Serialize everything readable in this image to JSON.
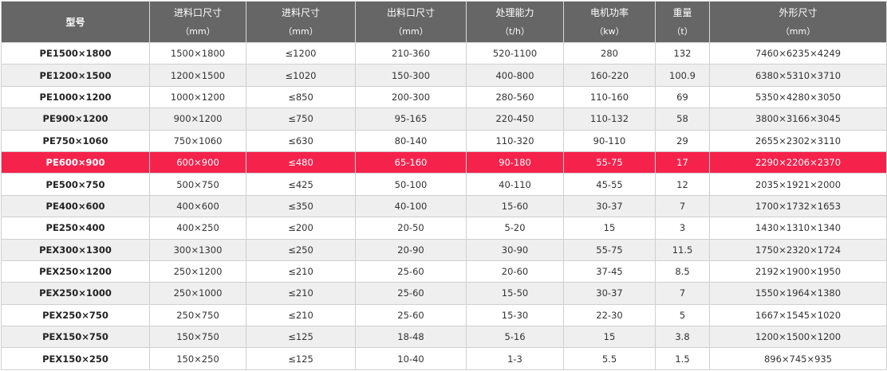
{
  "colors": {
    "header_bg": "#666666",
    "highlight_bg": "#f5234c",
    "alt_row_bg": "#efefef"
  },
  "headers": [
    {
      "title": "型号",
      "unit": ""
    },
    {
      "title": "进料口尺寸",
      "unit": "（mm）"
    },
    {
      "title": "进料尺寸",
      "unit": "（mm）"
    },
    {
      "title": "出料口尺寸",
      "unit": "（mm）"
    },
    {
      "title": "处理能力",
      "unit": "（t/h）"
    },
    {
      "title": "电机功率",
      "unit": "（kw）"
    },
    {
      "title": "重量",
      "unit": "（t）"
    },
    {
      "title": "外形尺寸",
      "unit": "（mm）"
    }
  ],
  "highlighted_row": "PE600×900",
  "rows": [
    [
      "PE1500×1800",
      "1500×1800",
      "≤1200",
      "210-360",
      "520-1100",
      "280",
      "132",
      "7460×6235×4249"
    ],
    [
      "PE1200×1500",
      "1200×1500",
      "≤1020",
      "150-300",
      "400-800",
      "160-220",
      "100.9",
      "6380×5310×3710"
    ],
    [
      "PE1000×1200",
      "1000×1200",
      "≤850",
      "200-300",
      "280-560",
      "110-160",
      "69",
      "5350×4280×3050"
    ],
    [
      "PE900×1200",
      "900×1200",
      "≤750",
      "95-165",
      "220-450",
      "110-132",
      "58",
      "3800×3166×3045"
    ],
    [
      "PE750×1060",
      "750×1060",
      "≤630",
      "80-140",
      "110-320",
      "90-110",
      "29",
      "2655×2302×3110"
    ],
    [
      "PE600×900",
      "600×900",
      "≤480",
      "65-160",
      "90-180",
      "55-75",
      "17",
      "2290×2206×2370"
    ],
    [
      "PE500×750",
      "500×750",
      "≤425",
      "50-100",
      "40-110",
      "45-55",
      "12",
      "2035×1921×2000"
    ],
    [
      "PE400×600",
      "400×600",
      "≤350",
      "40-100",
      "15-60",
      "30-37",
      "7",
      "1700×1732×1653"
    ],
    [
      "PE250×400",
      "400×250",
      "≤200",
      "20-50",
      "5-20",
      "15",
      "3",
      "1430×1310×1340"
    ],
    [
      "PEX300×1300",
      "300×1300",
      "≤250",
      "20-90",
      "30-90",
      "55-75",
      "11.5",
      "1750×2320×1724"
    ],
    [
      "PEX250×1200",
      "250×1200",
      "≤210",
      "25-60",
      "20-60",
      "37-45",
      "8.5",
      "2192×1900×1950"
    ],
    [
      "PEX250×1000",
      "250×1000",
      "≤210",
      "25-60",
      "15-50",
      "30-37",
      "7",
      "1550×1964×1380"
    ],
    [
      "PEX250×750",
      "250×750",
      "≤210",
      "25-60",
      "15-30",
      "22-30",
      "5",
      "1667×1545×1020"
    ],
    [
      "PEX150×750",
      "150×750",
      "≤125",
      "18-48",
      "5-16",
      "15",
      "3.8",
      "1200×1500×1200"
    ],
    [
      "PEX150×250",
      "150×250",
      "≤125",
      "10-40",
      "1-3",
      "5.5",
      "1.5",
      "896×745×935"
    ]
  ]
}
